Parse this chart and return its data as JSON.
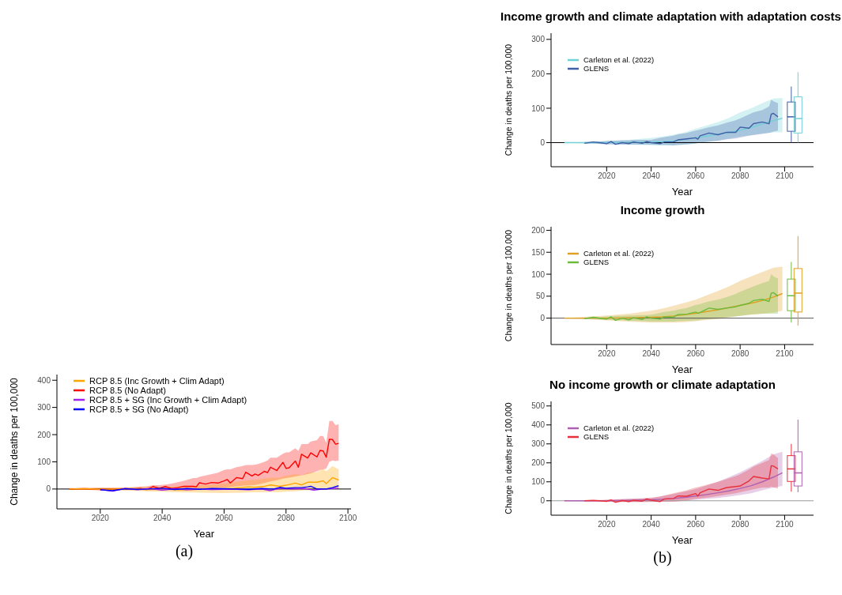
{
  "chart_data": [
    {
      "type": "line",
      "xlabel": "Year",
      "ylabel": "Change in deaths per 100,000",
      "xlim": [
        2006,
        2101
      ],
      "xticks": [
        2020,
        2040,
        2060,
        2080,
        2100
      ],
      "ylim": [
        -73,
        421
      ],
      "yticks": [
        0,
        100,
        200,
        300,
        400
      ],
      "grid": false,
      "legend": "top left",
      "annotations": [
        "(a)"
      ],
      "ref_lines": [
        {
          "axis": "y",
          "value": 0,
          "color": "#000000"
        }
      ],
      "series": [
        {
          "name": "RCP 8.5 (Inc Growth + Clim Adapt)",
          "color": "#ffa500",
          "x": [
            2010,
            2015,
            2020,
            2025,
            2030,
            2035,
            2040,
            2045,
            2050,
            2055,
            2060,
            2063,
            2065,
            2068,
            2070,
            2073,
            2075,
            2078,
            2080,
            2083,
            2085,
            2087,
            2090,
            2092,
            2093,
            2095,
            2097
          ],
          "values": [
            0,
            1,
            -1,
            0,
            1,
            -2,
            0,
            -3,
            -2,
            0,
            1,
            3,
            5,
            8,
            6,
            10,
            15,
            10,
            14,
            22,
            15,
            25,
            25,
            30,
            20,
            42,
            33
          ],
          "lower": [
            -2,
            -3,
            -4,
            -5,
            -6,
            -8,
            -10,
            -12,
            -13,
            -14,
            -15,
            -14,
            -14,
            -13,
            -12,
            -12,
            -11,
            -11,
            -10,
            -8,
            -6,
            -5,
            -3,
            -2,
            -2,
            0,
            0
          ],
          "upper": [
            2,
            3,
            4,
            5,
            6,
            8,
            8,
            10,
            12,
            15,
            20,
            25,
            28,
            32,
            33,
            38,
            42,
            42,
            48,
            55,
            50,
            60,
            62,
            75,
            65,
            85,
            72
          ]
        },
        {
          "name": "RCP 8.5 (No Adapt)",
          "color": "#ff0000",
          "x": [
            2010,
            2015,
            2020,
            2025,
            2030,
            2033,
            2035,
            2037,
            2039,
            2041,
            2043,
            2045,
            2047,
            2050,
            2051,
            2052,
            2054,
            2056,
            2058,
            2060,
            2061,
            2062,
            2064,
            2066,
            2067,
            2069,
            2070,
            2071,
            2073,
            2074,
            2075,
            2077,
            2079,
            2080,
            2081,
            2083,
            2084,
            2085,
            2087,
            2088,
            2090,
            2091,
            2092,
            2093,
            2094,
            2095,
            2096,
            2097
          ],
          "values": [
            0,
            1,
            -2,
            0,
            0,
            2,
            -2,
            9,
            3,
            9,
            2,
            5,
            10,
            10,
            8,
            23,
            18,
            24,
            22,
            30,
            35,
            22,
            42,
            38,
            62,
            48,
            55,
            50,
            65,
            60,
            80,
            68,
            98,
            76,
            78,
            103,
            80,
            128,
            114,
            133,
            118,
            142,
            140,
            117,
            183,
            182,
            165,
            168
          ],
          "lower": [
            -3,
            -3,
            -4,
            -4,
            -4,
            -4,
            -5,
            -5,
            -5,
            -5,
            -5,
            -5,
            -5,
            -5,
            -4,
            -3,
            0,
            2,
            3,
            5,
            6,
            7,
            10,
            12,
            13,
            14,
            15,
            17,
            22,
            25,
            28,
            32,
            38,
            40,
            42,
            46,
            48,
            50,
            55,
            58,
            65,
            70,
            72,
            75,
            100,
            105,
            103,
            105
          ],
          "upper": [
            3,
            4,
            5,
            5,
            6,
            9,
            10,
            14,
            14,
            16,
            20,
            25,
            30,
            40,
            40,
            45,
            50,
            55,
            60,
            70,
            72,
            72,
            80,
            85,
            88,
            88,
            90,
            92,
            100,
            105,
            115,
            115,
            130,
            135,
            135,
            150,
            140,
            165,
            165,
            175,
            180,
            195,
            195,
            170,
            250,
            250,
            235,
            238
          ]
        },
        {
          "name": "RCP 8.5 + SG (Inc Growth + Clim Adapt)",
          "color": "#a020f0",
          "x": [
            2020,
            2024,
            2028,
            2032,
            2036,
            2040,
            2044,
            2048,
            2052,
            2056,
            2060,
            2064,
            2068,
            2072,
            2075,
            2078,
            2082,
            2086,
            2089,
            2092,
            2095,
            2097
          ],
          "values": [
            -2,
            -8,
            2,
            -3,
            2,
            -4,
            1,
            -3,
            0,
            -2,
            -1,
            -1,
            -3,
            0,
            -6,
            3,
            0,
            2,
            -4,
            0,
            2,
            3
          ]
        },
        {
          "name": "RCP 8.5 + SG (No Adapt)",
          "color": "#0000ff",
          "x": [
            2020,
            2024,
            2028,
            2032,
            2036,
            2040,
            2044,
            2048,
            2052,
            2056,
            2060,
            2064,
            2068,
            2072,
            2076,
            2078,
            2080,
            2083,
            2085,
            2087,
            2088,
            2090,
            2093,
            2095,
            2097
          ],
          "values": [
            -3,
            -6,
            1,
            -1,
            0,
            3,
            -2,
            2,
            -1,
            2,
            1,
            0,
            -1,
            2,
            0,
            6,
            3,
            5,
            5,
            8,
            10,
            0,
            0,
            5,
            12
          ]
        }
      ]
    },
    {
      "type": "line",
      "title": "Income growth and climate adaptation with adaptation costs",
      "xlabel": "Year",
      "ylabel": "Change in deaths per 100,000",
      "xlim": [
        1995,
        2113
      ],
      "xticks": [
        2020,
        2040,
        2060,
        2080,
        2100
      ],
      "ylim": [
        -70,
        318
      ],
      "yticks": [
        0,
        100,
        200,
        300
      ],
      "grid": false,
      "legend": "top left",
      "ref_lines": [
        {
          "axis": "y",
          "value": 0,
          "color": "#000000"
        }
      ],
      "series": [
        {
          "name": "Carleton et al. (2022)",
          "color": "#6fd0d8",
          "x": [
            2001,
            2010,
            2020,
            2030,
            2040,
            2045,
            2050,
            2055,
            2060,
            2065,
            2070,
            2075,
            2080,
            2085,
            2090,
            2095,
            2099
          ],
          "values": [
            0,
            0,
            0,
            1,
            2,
            3,
            5,
            9,
            14,
            19,
            24,
            30,
            36,
            44,
            54,
            64,
            71
          ],
          "lower": [
            0,
            -2,
            -4,
            -6,
            -8,
            -8,
            -8,
            -6,
            -3,
            2,
            6,
            12,
            18,
            22,
            27,
            30,
            30
          ],
          "upper": [
            0,
            2,
            4,
            8,
            14,
            18,
            23,
            30,
            40,
            50,
            60,
            72,
            88,
            100,
            115,
            128,
            130
          ]
        },
        {
          "name": "GLENS",
          "color": "#3f5fa8",
          "x": [
            2010,
            2014,
            2018,
            2020,
            2022,
            2024,
            2027,
            2030,
            2032,
            2036,
            2038,
            2040,
            2044,
            2046,
            2050,
            2052,
            2056,
            2060,
            2061,
            2062,
            2066,
            2070,
            2074,
            2078,
            2080,
            2084,
            2086,
            2090,
            2093,
            2094,
            2095,
            2097
          ],
          "values": [
            -2,
            2,
            -1,
            -3,
            3,
            -5,
            0,
            -3,
            2,
            -2,
            3,
            0,
            -3,
            2,
            2,
            8,
            11,
            14,
            10,
            20,
            28,
            23,
            30,
            30,
            45,
            42,
            55,
            60,
            55,
            83,
            85,
            75
          ],
          "lower": [
            -2,
            -3,
            -4,
            -5,
            -5,
            -6,
            -6,
            -6,
            -6,
            -6,
            -6,
            -6,
            -7,
            -7,
            -8,
            -7,
            -5,
            -2,
            -1,
            0,
            3,
            5,
            10,
            12,
            15,
            20,
            22,
            25,
            28,
            30,
            32,
            35
          ],
          "upper": [
            2,
            3,
            4,
            5,
            6,
            6,
            7,
            7,
            8,
            8,
            8,
            8,
            14,
            16,
            20,
            24,
            28,
            35,
            36,
            38,
            45,
            50,
            58,
            65,
            70,
            82,
            88,
            95,
            105,
            125,
            120,
            115
          ]
        },
        {
          "type": "box",
          "color": "#3f5fa8",
          "x": [
            2103
          ],
          "boxes": [
            {
              "low": 0,
              "q1": 33,
              "median": 75,
              "q3": 118,
              "high": 163
            }
          ]
        },
        {
          "type": "box",
          "color": "#6fd0d8",
          "x": [
            2106
          ],
          "boxes": [
            {
              "low": 0,
              "q1": 28,
              "median": 70,
              "q3": 133,
              "high": 205
            }
          ]
        }
      ]
    },
    {
      "type": "line",
      "title": "Income growth",
      "xlabel": "Year",
      "ylabel": "Change in deaths per 100,000",
      "xlim": [
        1995,
        2113
      ],
      "xticks": [
        2020,
        2040,
        2060,
        2080,
        2100
      ],
      "ylim": [
        -60,
        208
      ],
      "yticks": [
        0,
        50,
        100,
        150,
        200
      ],
      "grid": false,
      "legend": "top left",
      "ref_lines": [
        {
          "axis": "y",
          "value": 0,
          "color": "#555555"
        }
      ],
      "series": [
        {
          "name": "Carleton et al. (2022)",
          "color": "#e0a020",
          "x": [
            2001,
            2010,
            2020,
            2030,
            2040,
            2045,
            2050,
            2055,
            2060,
            2065,
            2070,
            2075,
            2080,
            2085,
            2090,
            2095,
            2099
          ],
          "values": [
            0,
            0,
            0,
            1,
            2,
            3,
            5,
            8,
            11,
            15,
            19,
            24,
            29,
            34,
            40,
            48,
            56
          ],
          "lower": [
            0,
            -2,
            -5,
            -8,
            -10,
            -10,
            -10,
            -9,
            -7,
            -4,
            -2,
            2,
            5,
            8,
            10,
            13,
            17
          ],
          "upper": [
            0,
            3,
            6,
            10,
            17,
            22,
            28,
            35,
            42,
            52,
            62,
            72,
            85,
            95,
            105,
            115,
            117
          ]
        },
        {
          "name": "GLENS",
          "color": "#6cbb3c",
          "x": [
            2010,
            2014,
            2018,
            2020,
            2022,
            2024,
            2027,
            2030,
            2032,
            2036,
            2038,
            2040,
            2044,
            2046,
            2050,
            2052,
            2056,
            2060,
            2061,
            2062,
            2066,
            2070,
            2074,
            2078,
            2080,
            2084,
            2086,
            2090,
            2093,
            2094,
            2095,
            2097
          ],
          "values": [
            -1,
            2,
            -1,
            -2,
            3,
            -5,
            0,
            -4,
            1,
            -3,
            3,
            0,
            -2,
            3,
            2,
            8,
            9,
            14,
            11,
            13,
            23,
            20,
            23,
            26,
            29,
            34,
            40,
            43,
            38,
            57,
            58,
            50
          ],
          "lower": [
            -1,
            -2,
            -3,
            -4,
            -4,
            -5,
            -5,
            -6,
            -6,
            -7,
            -7,
            -8,
            -8,
            -8,
            -8,
            -7,
            -6,
            -5,
            -5,
            -4,
            -2,
            0,
            2,
            4,
            5,
            8,
            9,
            10,
            10,
            10,
            10,
            10
          ],
          "upper": [
            1,
            2,
            3,
            4,
            4,
            5,
            5,
            6,
            6,
            7,
            7,
            8,
            12,
            14,
            17,
            19,
            23,
            30,
            31,
            32,
            38,
            42,
            48,
            55,
            60,
            68,
            72,
            80,
            85,
            100,
            95,
            90
          ]
        },
        {
          "type": "box",
          "color": "#6cbb3c",
          "x": [
            2103
          ],
          "boxes": [
            {
              "low": -10,
              "q1": 17,
              "median": 51,
              "q3": 89,
              "high": 128
            }
          ]
        },
        {
          "type": "box",
          "color": "#e0a020",
          "x": [
            2106
          ],
          "boxes": [
            {
              "low": -17,
              "q1": 14,
              "median": 57,
              "q3": 113,
              "high": 187
            }
          ]
        }
      ]
    },
    {
      "type": "line",
      "title": "No income growth or climate adaptation",
      "xlabel": "Year",
      "ylabel": "Change in deaths per 100,000",
      "xlim": [
        1995,
        2113
      ],
      "xticks": [
        2020,
        2040,
        2060,
        2080,
        2100
      ],
      "ylim": [
        -76,
        524
      ],
      "yticks": [
        0,
        100,
        200,
        300,
        400,
        500
      ],
      "grid": false,
      "legend": "top left",
      "annotations": [
        "(b)"
      ],
      "ref_lines": [
        {
          "axis": "y",
          "value": 0,
          "color": "#999999"
        }
      ],
      "series": [
        {
          "name": "Carleton et al. (2022)",
          "color": "#b060b0",
          "x": [
            2001,
            2010,
            2020,
            2030,
            2040,
            2045,
            2050,
            2055,
            2060,
            2065,
            2070,
            2075,
            2080,
            2085,
            2090,
            2095,
            2099
          ],
          "values": [
            0,
            0,
            0,
            2,
            5,
            8,
            12,
            18,
            25,
            33,
            42,
            52,
            65,
            80,
            100,
            125,
            147
          ],
          "lower": [
            0,
            -2,
            -4,
            -6,
            -6,
            -5,
            -3,
            0,
            5,
            10,
            15,
            22,
            30,
            40,
            55,
            70,
            78
          ],
          "upper": [
            0,
            2,
            5,
            10,
            17,
            25,
            35,
            48,
            62,
            80,
            100,
            125,
            150,
            180,
            210,
            245,
            258
          ]
        },
        {
          "name": "GLENS",
          "color": "#e8303c",
          "x": [
            2010,
            2014,
            2018,
            2020,
            2022,
            2024,
            2027,
            2030,
            2032,
            2036,
            2038,
            2040,
            2044,
            2046,
            2050,
            2052,
            2056,
            2060,
            2061,
            2062,
            2066,
            2070,
            2074,
            2078,
            2080,
            2084,
            2086,
            2090,
            2093,
            2094,
            2095,
            2097
          ],
          "values": [
            0,
            2,
            -1,
            -3,
            5,
            -8,
            1,
            -4,
            2,
            -2,
            10,
            3,
            -4,
            10,
            12,
            25,
            24,
            38,
            25,
            42,
            62,
            55,
            70,
            75,
            78,
            105,
            128,
            120,
            115,
            185,
            183,
            168
          ],
          "lower": [
            -2,
            -3,
            -4,
            -5,
            -5,
            -10,
            -6,
            -6,
            -6,
            -6,
            -6,
            -5,
            -5,
            -5,
            -5,
            -3,
            2,
            10,
            11,
            13,
            18,
            25,
            32,
            40,
            45,
            55,
            60,
            70,
            70,
            75,
            70,
            65
          ],
          "upper": [
            2,
            3,
            4,
            5,
            6,
            7,
            8,
            9,
            10,
            12,
            14,
            15,
            22,
            28,
            40,
            45,
            55,
            70,
            72,
            75,
            88,
            100,
            115,
            130,
            140,
            165,
            180,
            200,
            215,
            250,
            245,
            225
          ]
        },
        {
          "type": "box",
          "color": "#e8303c",
          "x": [
            2103
          ],
          "boxes": [
            {
              "low": 48,
              "q1": 102,
              "median": 168,
              "q3": 238,
              "high": 300
            }
          ]
        },
        {
          "type": "box",
          "color": "#b060b0",
          "x": [
            2106
          ],
          "boxes": [
            {
              "low": 45,
              "q1": 78,
              "median": 147,
              "q3": 258,
              "high": 428
            }
          ]
        }
      ]
    }
  ]
}
